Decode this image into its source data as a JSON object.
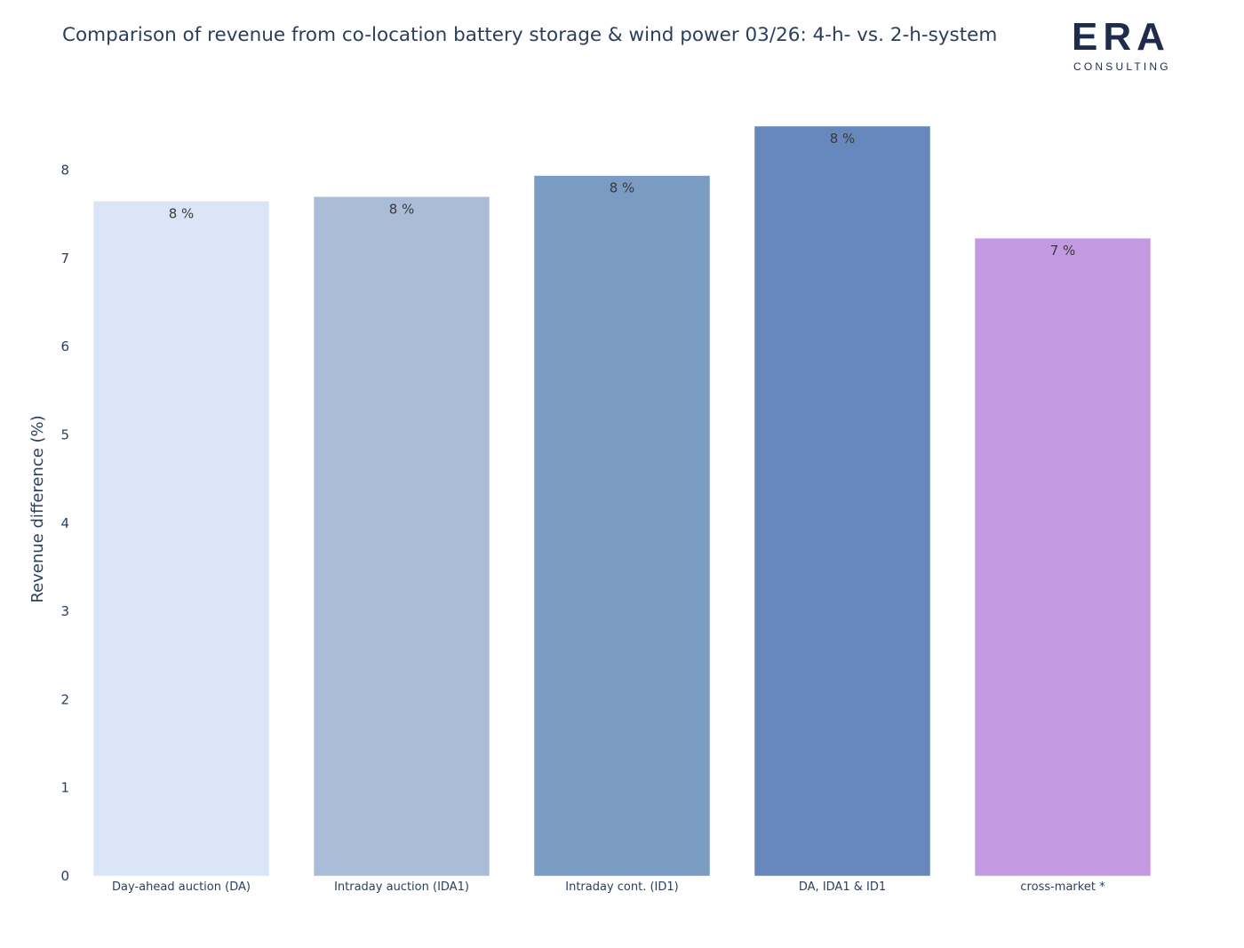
{
  "title": "Comparison of revenue from co-location battery storage & wind power 03/26: 4-h- vs. 2-h-system",
  "logo": {
    "word": "ERA",
    "sub": "CONSULTING"
  },
  "chart_data": {
    "type": "bar",
    "title": "Comparison of revenue from co-location battery storage & wind power 03/26: 4-h- vs. 2-h-system",
    "xlabel": "",
    "ylabel": "Revenue difference (%)",
    "ylim": [
      0,
      8.7
    ],
    "yticks": [
      0,
      1,
      2,
      3,
      4,
      5,
      6,
      7,
      8
    ],
    "grid": false,
    "categories": [
      "Day-ahead auction (DA)",
      "Intraday auction (IDA1)",
      "Intraday cont. (ID1)",
      "DA, IDA1 & ID1",
      "cross-market *"
    ],
    "values": [
      7.65,
      7.7,
      7.94,
      8.5,
      7.23
    ],
    "labels": [
      "8 %",
      "8 %",
      "8 %",
      "8 %",
      "7 %"
    ],
    "colors": [
      "#dae6f7",
      "#aabdd8",
      "#7a9bc2",
      "#6688bd",
      "#c399e2"
    ]
  }
}
